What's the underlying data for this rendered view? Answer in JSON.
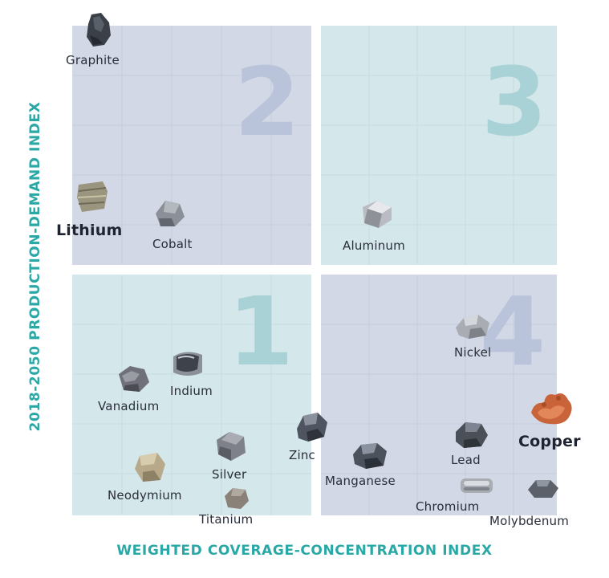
{
  "colors": {
    "quadrant_blue": "#d2d8e6",
    "quadrant_teal": "#d4e7ea",
    "number_blue": "#b8c3d8",
    "number_teal": "#a9d2d6",
    "axis_teal": "#29a8a6"
  },
  "axes": {
    "x_label": "WEIGHTED COVERAGE-CONCENTRATION INDEX",
    "y_label": "2018-2050 PRODUCTION-DEMAND INDEX"
  },
  "quadrants": {
    "q2": "2",
    "q3": "3",
    "q1": "1",
    "q4": "4"
  },
  "minerals": {
    "graphite": {
      "label": "Graphite",
      "icon": "graphite-rock-icon"
    },
    "lithium": {
      "label": "Lithium",
      "icon": "lithium-rock-icon"
    },
    "cobalt": {
      "label": "Cobalt",
      "icon": "cobalt-rock-icon"
    },
    "aluminum": {
      "label": "Aluminum",
      "icon": "aluminum-rock-icon"
    },
    "nickel": {
      "label": "Nickel",
      "icon": "nickel-rock-icon"
    },
    "indium": {
      "label": "Indium",
      "icon": "indium-rock-icon"
    },
    "vanadium": {
      "label": "Vanadium",
      "icon": "vanadium-rock-icon"
    },
    "zinc": {
      "label": "Zinc",
      "icon": "zinc-rock-icon"
    },
    "silver": {
      "label": "Silver",
      "icon": "silver-rock-icon"
    },
    "neodymium": {
      "label": "Neodymium",
      "icon": "neodymium-rock-icon"
    },
    "titanium": {
      "label": "Titanium",
      "icon": "titanium-rock-icon"
    },
    "manganese": {
      "label": "Manganese",
      "icon": "manganese-rock-icon"
    },
    "lead": {
      "label": "Lead",
      "icon": "lead-rock-icon"
    },
    "copper": {
      "label": "Copper",
      "icon": "copper-rock-icon"
    },
    "chromium": {
      "label": "Chromium",
      "icon": "chromium-rock-icon"
    },
    "molybdenum": {
      "label": "Molybdenum",
      "icon": "molybdenum-rock-icon"
    }
  }
}
